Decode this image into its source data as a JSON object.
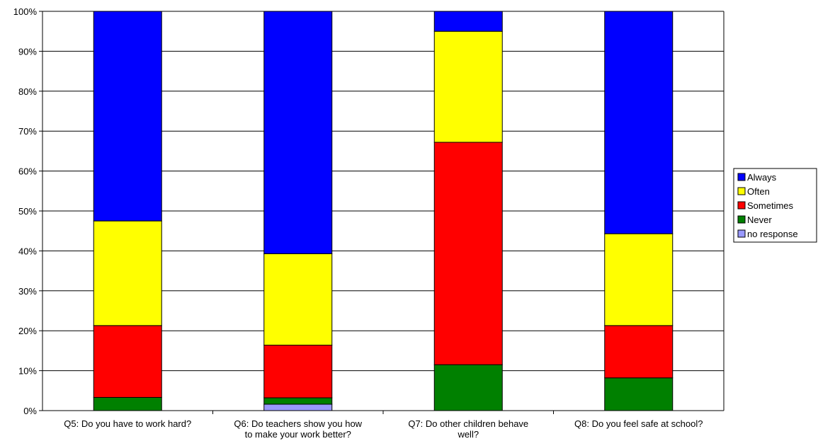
{
  "chart_data": {
    "type": "bar",
    "stacked": true,
    "stack_mode": "percent",
    "categories": [
      [
        "Q5: Do you have to work hard?"
      ],
      [
        "Q6: Do teachers show you how",
        "to make your work better?"
      ],
      [
        "Q7: Do other children behave",
        "well?"
      ],
      [
        "Q8: Do you feel safe at school?"
      ]
    ],
    "series": [
      {
        "name": "no response",
        "color": "#9999FF",
        "values": [
          0,
          1.6,
          0,
          0
        ]
      },
      {
        "name": "Never",
        "color": "#008000",
        "values": [
          3.3,
          1.6,
          11.5,
          8.2
        ]
      },
      {
        "name": "Sometimes",
        "color": "#FF0000",
        "values": [
          18.0,
          13.2,
          55.7,
          13.1
        ]
      },
      {
        "name": "Often",
        "color": "#FFFF00",
        "values": [
          26.2,
          22.9,
          27.8,
          23.0
        ]
      },
      {
        "name": "Always",
        "color": "#0000FF",
        "values": [
          52.5,
          60.7,
          5.0,
          55.7
        ]
      }
    ],
    "legend_order": [
      "Always",
      "Often",
      "Sometimes",
      "Never",
      "no response"
    ],
    "legend_position": "right",
    "ylim": [
      0,
      100
    ],
    "yticks": [
      "0%",
      "10%",
      "20%",
      "30%",
      "40%",
      "50%",
      "60%",
      "70%",
      "80%",
      "90%",
      "100%"
    ],
    "grid": true,
    "title": "",
    "xlabel": "",
    "ylabel": ""
  }
}
